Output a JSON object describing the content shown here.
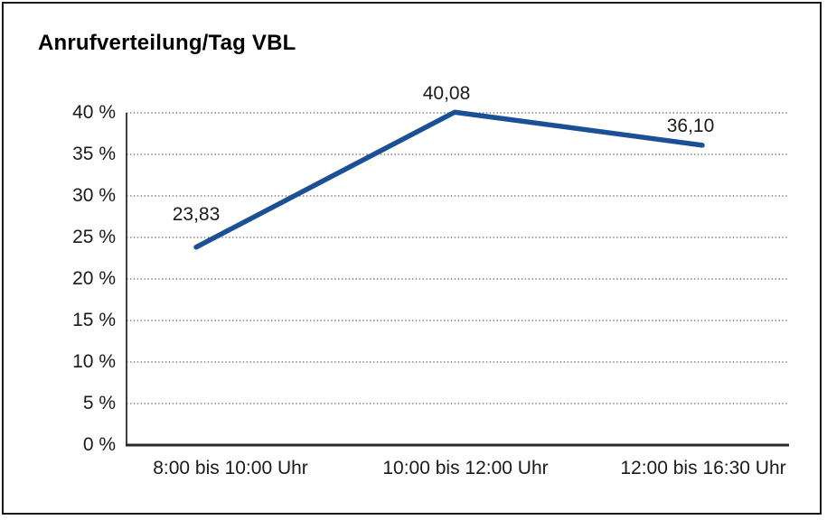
{
  "chart_data": {
    "type": "line",
    "title": "Anrufverteilung/Tag VBL",
    "categories": [
      "8:00 bis 10:00 Uhr",
      "10:00 bis 12:00 Uhr",
      "12:00 bis 16:30 Uhr"
    ],
    "values": [
      23.83,
      40.08,
      36.1
    ],
    "value_labels": [
      "23,83",
      "40,08",
      "36,10"
    ],
    "y_tick_labels": [
      "0 %",
      "5 %",
      "10 %",
      "15 %",
      "20 %",
      "25 %",
      "30 %",
      "35 %",
      "40 %"
    ],
    "y_tick_step": 5,
    "ylim": [
      0,
      40
    ],
    "xlabel": "",
    "ylabel": "",
    "grid": "horizontal-dotted",
    "legend": "none",
    "line_color": "#1b4f96",
    "axis_color": "#2a2a2a",
    "gridline_color": "#6b6b6b",
    "text_color": "#1a1a1a"
  }
}
